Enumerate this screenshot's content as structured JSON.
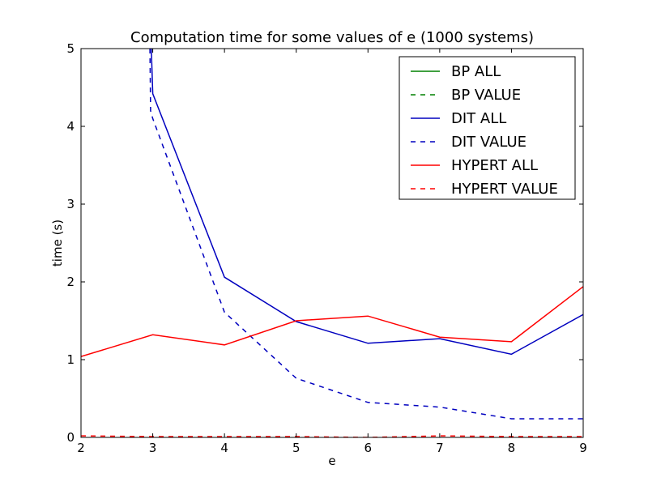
{
  "chart_data": {
    "type": "line",
    "title": "Computation time for some values of e (1000 systems)",
    "xlabel": "e",
    "ylabel": "time (s)",
    "xlim": [
      2,
      9
    ],
    "ylim": [
      0,
      5
    ],
    "xticks": [
      2,
      3,
      4,
      5,
      6,
      7,
      8,
      9
    ],
    "yticks": [
      0,
      1,
      2,
      3,
      4,
      5
    ],
    "grid": false,
    "legend_position": "top-right",
    "series": [
      {
        "name": "BP ALL",
        "color": "#008000",
        "dash": "solid",
        "x": [],
        "y": []
      },
      {
        "name": "BP VALUE",
        "color": "#008000",
        "dash": "dashed",
        "x": [],
        "y": []
      },
      {
        "name": "DIT ALL",
        "color": "#0000bf",
        "dash": "solid",
        "x": [
          2.95,
          2.98,
          3,
          4,
          5,
          6,
          7,
          8,
          9
        ],
        "y": [
          6.0,
          5.0,
          4.42,
          2.06,
          1.49,
          1.21,
          1.27,
          1.07,
          1.58
        ]
      },
      {
        "name": "DIT VALUE",
        "color": "#0000bf",
        "dash": "dashed",
        "x": [
          2.95,
          2.97,
          3,
          4,
          5,
          6,
          7,
          8,
          9
        ],
        "y": [
          6.0,
          4.2,
          4.1,
          1.61,
          0.76,
          0.45,
          0.39,
          0.24,
          0.24
        ]
      },
      {
        "name": "HYPERT ALL",
        "color": "#ff0000",
        "dash": "solid",
        "x": [
          2,
          3,
          4,
          5,
          6,
          7,
          8,
          9
        ],
        "y": [
          1.04,
          1.32,
          1.19,
          1.5,
          1.56,
          1.29,
          1.23,
          1.94
        ]
      },
      {
        "name": "HYPERT VALUE",
        "color": "#ff0000",
        "dash": "dashed",
        "x": [
          2,
          3,
          4,
          5,
          6,
          7,
          8,
          9
        ],
        "y": [
          0.02,
          0.01,
          0.01,
          0.01,
          0.0,
          0.02,
          0.01,
          0.01
        ]
      }
    ]
  }
}
